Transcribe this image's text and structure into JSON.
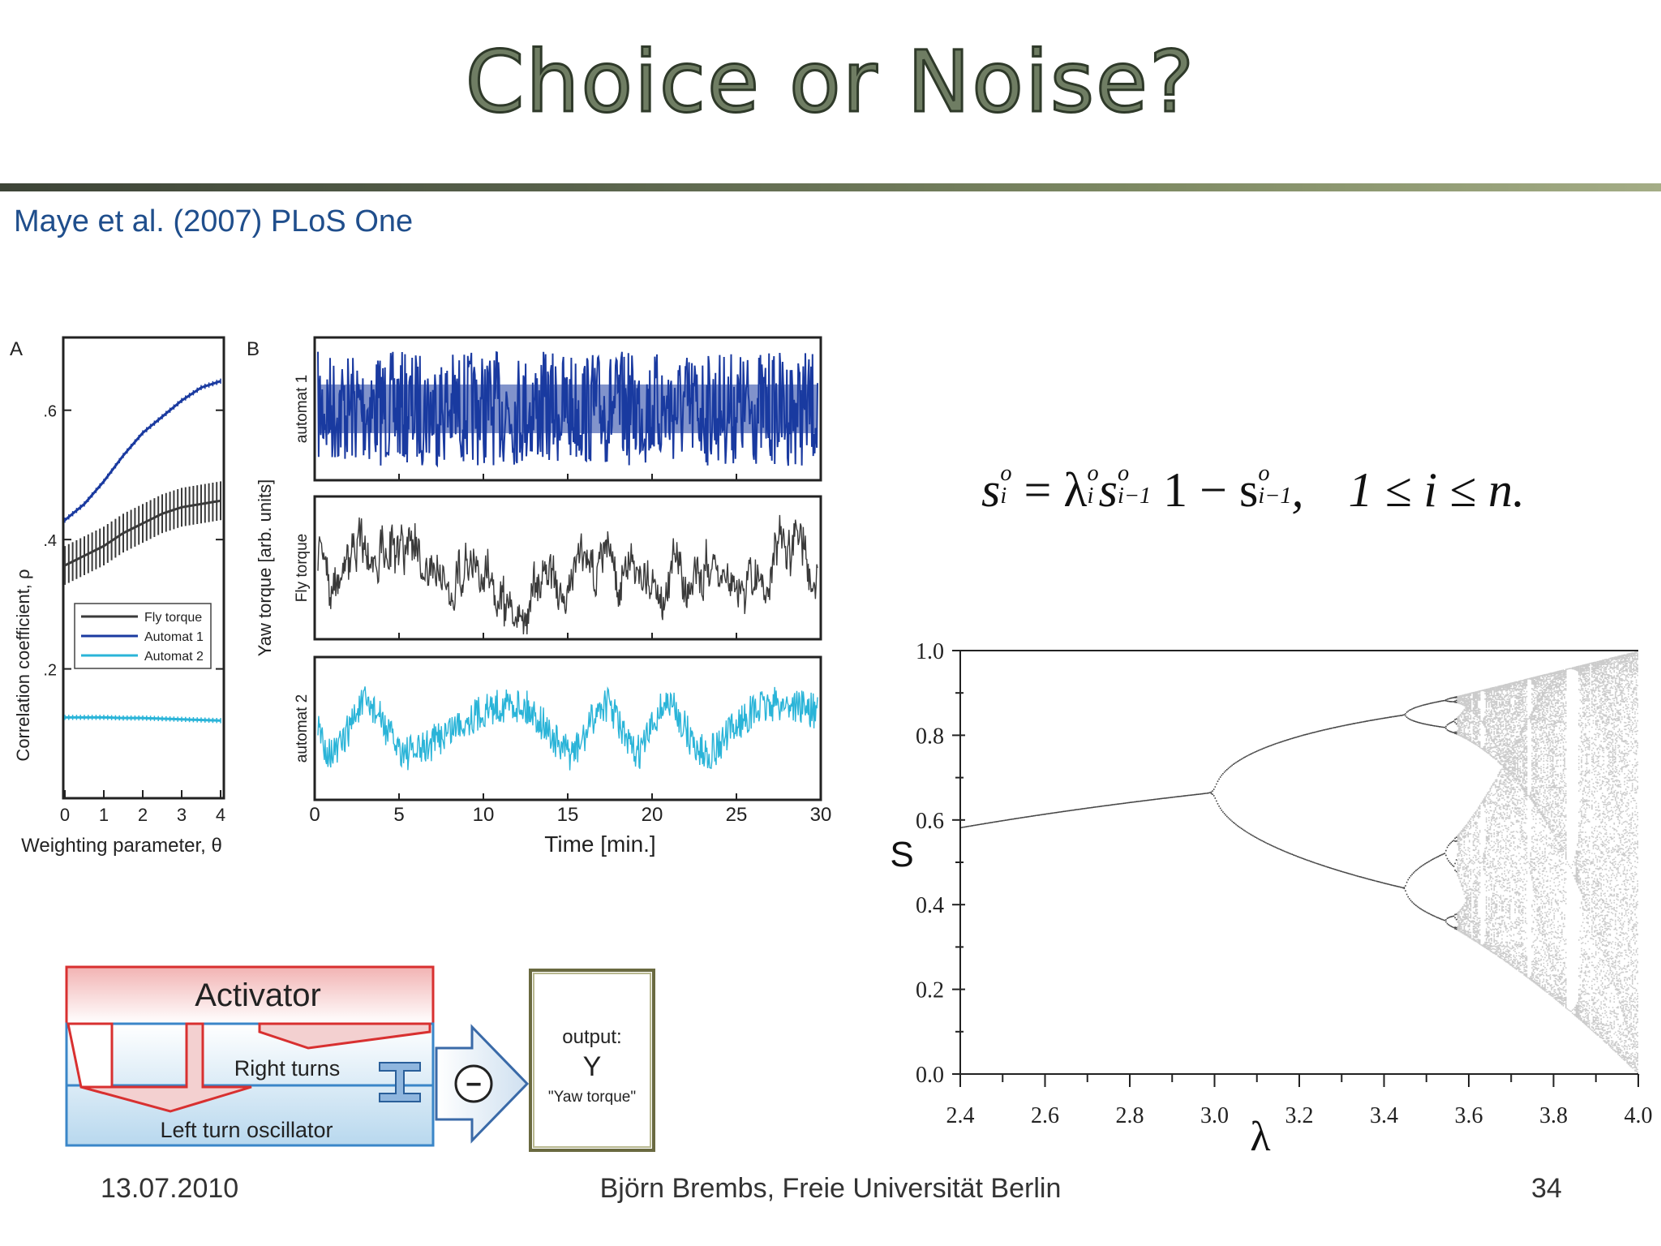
{
  "slide": {
    "title": "Choice or Noise?",
    "citation": "Maye et al. (2007) PLoS One",
    "footer_date": "13.07.2010",
    "footer_author": "Björn Brembs, Freie Universität Berlin",
    "footer_page": "34"
  },
  "panelA": {
    "label": "A",
    "xlabel": "Weighting parameter, θ",
    "ylabel": "Correlation coefficient, ρ",
    "xticks": [
      "0",
      "1",
      "2",
      "3",
      "4"
    ],
    "yticks": [
      ".2",
      ".4",
      ".6"
    ]
  },
  "panelB": {
    "label": "B",
    "xlabel": "Time [min.]",
    "ylabel": "Yaw torque [arb. units]",
    "xticks": [
      "0",
      "5",
      "10",
      "15",
      "20",
      "25",
      "30"
    ],
    "trace_labels": [
      "automat 1",
      "Fly torque",
      "automat 2"
    ]
  },
  "equation": {
    "lhs": "s",
    "rhs_prefix": "= λ",
    "term": "s",
    "minus": "1 − s",
    "comma": ",",
    "range": "1 ≤ i ≤ n.",
    "sup": "o",
    "sub_i": "i",
    "sub_im1": "i−1"
  },
  "diagram": {
    "activator": "Activator",
    "right_turns": "Right turns",
    "left_turn": "Left turn oscillator",
    "minus_symbol": "−",
    "output_label": "output:",
    "output_var": "Y",
    "output_name": "\"Yaw torque\""
  },
  "colors": {
    "fly": "#3a3a3a",
    "automat1": "#1a3aa0",
    "automat2": "#2ab4d8",
    "bifurcation": "#111111"
  },
  "chart_data": [
    {
      "type": "line",
      "panel": "A",
      "x": [
        0,
        0.5,
        1,
        1.5,
        2,
        2.5,
        3,
        3.5,
        4
      ],
      "series": [
        {
          "name": "Fly torque",
          "values": [
            0.36,
            0.375,
            0.39,
            0.41,
            0.425,
            0.44,
            0.45,
            0.455,
            0.46
          ],
          "error": 0.03
        },
        {
          "name": "Automat 1",
          "values": [
            0.43,
            0.455,
            0.49,
            0.53,
            0.565,
            0.59,
            0.615,
            0.635,
            0.645
          ]
        },
        {
          "name": "Automat 2",
          "values": [
            0.125,
            0.125,
            0.125,
            0.124,
            0.124,
            0.123,
            0.122,
            0.121,
            0.12
          ]
        }
      ],
      "xlabel": "Weighting parameter, θ",
      "ylabel": "Correlation coefficient, ρ",
      "xlim": [
        0,
        4
      ],
      "ylim": [
        0,
        0.7
      ]
    },
    {
      "type": "line",
      "panel": "B",
      "xlabel": "Time [min.]",
      "ylabel": "Yaw torque [arb. units]",
      "xlim": [
        0,
        30
      ],
      "series": [
        {
          "name": "automat 1",
          "style": "dense high-frequency noise"
        },
        {
          "name": "Fly torque",
          "style": "slow fluctuating noise"
        },
        {
          "name": "automat 2",
          "style": "oscillating noise"
        }
      ]
    },
    {
      "type": "scatter",
      "panel": "bifurcation",
      "xlabel": "λ",
      "ylabel": "S",
      "xlim": [
        2.4,
        4.0
      ],
      "ylim": [
        0.0,
        1.0
      ],
      "xticks": [
        "2.4",
        "2.6",
        "2.8",
        "3.0",
        "3.2",
        "3.4",
        "3.6",
        "3.8",
        "4.0"
      ],
      "yticks": [
        "0.0",
        "0.2",
        "0.4",
        "0.6",
        "0.8",
        "1.0"
      ],
      "map": "logistic S(i) = λ·S(i−1)·(1 − S(i−1))"
    }
  ]
}
